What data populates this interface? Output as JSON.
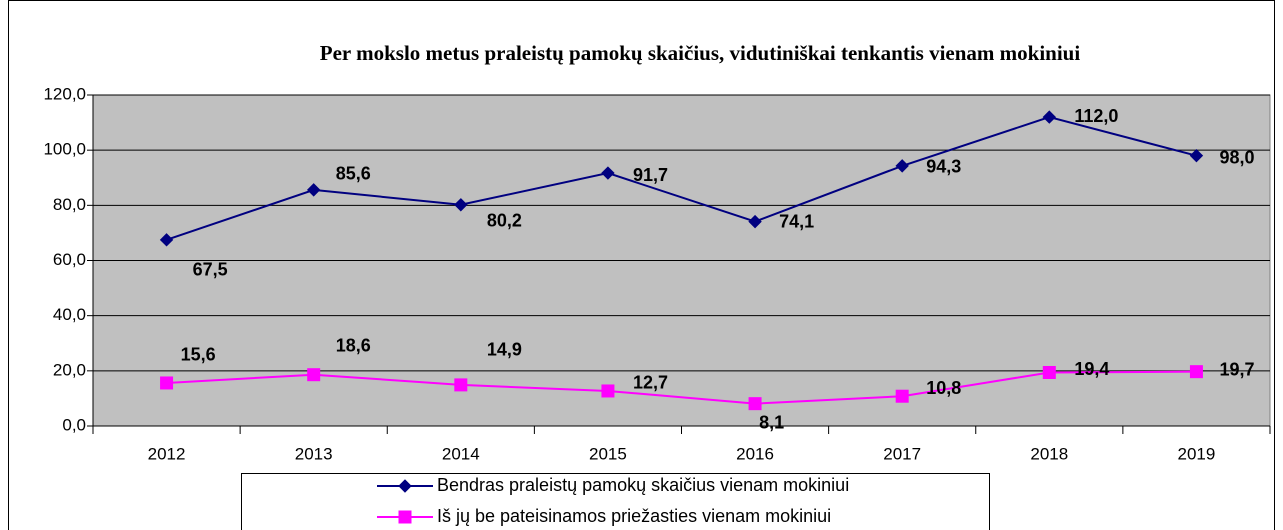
{
  "chart_data": {
    "type": "line",
    "title": "Per mokslo metus praleistų pamokų skaičius, vidutiniškai tenkantis vienam mokiniui",
    "categories": [
      "2012",
      "2013",
      "2014",
      "2015",
      "2016",
      "2017",
      "2018",
      "2019"
    ],
    "series": [
      {
        "name": "Bendras praleistų pamokų skaičius vienam mokiniui",
        "color": "#000080",
        "marker": "diamond",
        "values": [
          67.5,
          85.6,
          80.2,
          91.7,
          74.1,
          94.3,
          112.0,
          98.0
        ],
        "value_labels": [
          "67,5",
          "85,6",
          "80,2",
          "91,7",
          "74,1",
          "94,3",
          "112,0",
          "98,0"
        ]
      },
      {
        "name": "Iš jų be pateisinamos priežasties vienam mokiniui",
        "color": "#ff00ff",
        "marker": "square",
        "values": [
          15.6,
          18.6,
          14.9,
          12.7,
          8.1,
          10.8,
          19.4,
          19.7
        ],
        "value_labels": [
          "15,6",
          "18,6",
          "14,9",
          "12,7",
          "8,1",
          "10,8",
          "19,4",
          "19,7"
        ]
      }
    ],
    "ylim": [
      0,
      120
    ],
    "yticks": [
      {
        "value": 0,
        "label": "0,0"
      },
      {
        "value": 20,
        "label": "20,0"
      },
      {
        "value": 40,
        "label": "40,0"
      },
      {
        "value": 60,
        "label": "60,0"
      },
      {
        "value": 80,
        "label": "80,0"
      },
      {
        "value": 100,
        "label": "100,0"
      },
      {
        "value": 120,
        "label": "120,0"
      }
    ],
    "grid": true,
    "legend": "bottom"
  }
}
